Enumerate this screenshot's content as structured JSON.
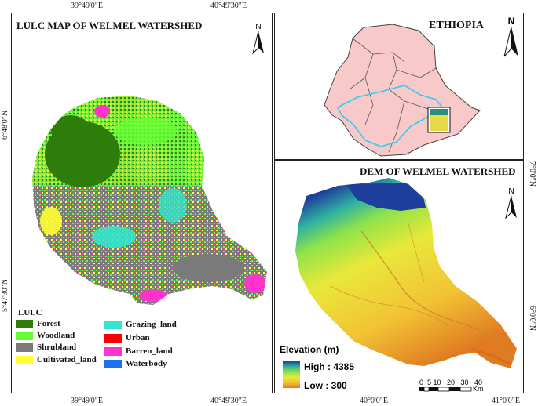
{
  "lulc": {
    "title": "LULC MAP OF WELMEL WATERSHED",
    "north": "N",
    "legend_title": "LULC",
    "legend": [
      {
        "label": "Forest",
        "color": "#2e7d0a"
      },
      {
        "label": "Woodland",
        "color": "#66ff33"
      },
      {
        "label": "Shrubland",
        "color": "#7a7a7a"
      },
      {
        "label": "Cultivated_land",
        "color": "#ffff33"
      },
      {
        "label": "Grazing_land",
        "color": "#33e6cc"
      },
      {
        "label": "Urban",
        "color": "#ff0000"
      },
      {
        "label": "Barren_land",
        "color": "#ff33cc"
      },
      {
        "label": "Waterbody",
        "color": "#1e6ef0"
      }
    ],
    "top_coords": [
      "39°49'0\"E",
      "40°49'30\"E"
    ],
    "bottom_coords": [
      "39°49'0\"E",
      "40°49'30\"E"
    ],
    "left_coords": [
      "6°48'0\"N",
      "5°47'30\"N"
    ]
  },
  "ethiopia": {
    "title": "ETHIOPIA",
    "north": "N"
  },
  "dem": {
    "title": "DEM OF WELMEL WATERSHED",
    "north": "N",
    "elevation_title": "Elevation (m)",
    "high_label": "High : 4385",
    "low_label": "Low : 300",
    "scale_numbers": "0  5 10   20   30   40",
    "scale_unit": "Km",
    "bottom_coords": [
      "40°0'0\"E",
      "41°0'0\"E"
    ],
    "right_coords": [
      "7°0'0\"N",
      "6°0'0\"N"
    ],
    "high_color": "#1f3f9c",
    "low_color": "#e07b22"
  }
}
